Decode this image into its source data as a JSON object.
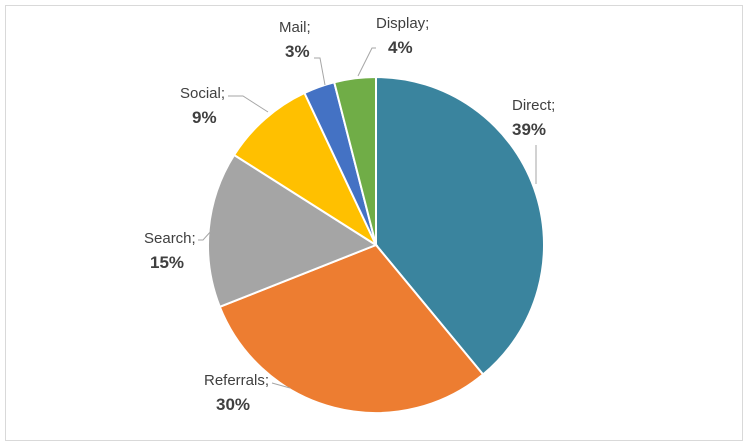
{
  "chart_data": {
    "type": "pie",
    "categories": [
      "Direct",
      "Referrals",
      "Search",
      "Social",
      "Mail",
      "Display"
    ],
    "values": [
      39,
      30,
      15,
      9,
      3,
      4
    ],
    "labels": [
      "Direct;",
      "Referrals;",
      "Search;",
      "Social;",
      "Mail;",
      "Display;"
    ],
    "percent_labels": [
      "39%",
      "30%",
      "15%",
      "9%",
      "3%",
      "4%"
    ],
    "colors": [
      "#3a849e",
      "#ed7d31",
      "#a5a5a5",
      "#ffc000",
      "#4472c4",
      "#70ad47"
    ],
    "title": "",
    "legend": "none"
  }
}
